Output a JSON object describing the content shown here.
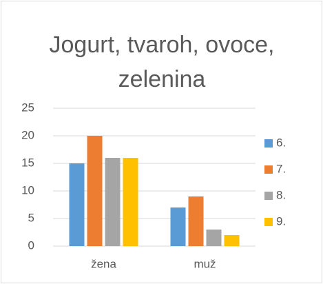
{
  "chart_data": {
    "type": "bar",
    "title": "Jogurt, tvaroh, ovoce, zelenina",
    "categories": [
      "žena",
      "muž"
    ],
    "series": [
      {
        "name": "6.",
        "color": "#5b9bd5",
        "values": [
          15,
          7
        ]
      },
      {
        "name": "7.",
        "color": "#ed7d31",
        "values": [
          20,
          9
        ]
      },
      {
        "name": "8.",
        "color": "#a5a5a5",
        "values": [
          16,
          3
        ]
      },
      {
        "name": "9.",
        "color": "#ffc000",
        "values": [
          16,
          2
        ]
      }
    ],
    "ylim": [
      0,
      25
    ],
    "yticks": [
      0,
      5,
      10,
      15,
      20,
      25
    ],
    "grid": true,
    "legend": "right"
  }
}
